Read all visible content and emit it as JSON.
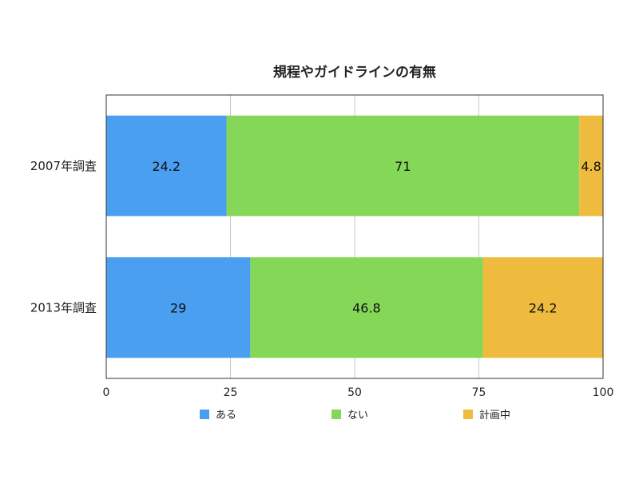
{
  "chart_data": {
    "type": "bar",
    "orientation": "horizontal",
    "stacked": true,
    "title": "規程やガイドラインの有無",
    "categories": [
      "2007年調査",
      "2013年調査"
    ],
    "series": [
      {
        "name": "ある",
        "values": [
          24.2,
          29
        ],
        "color": "#4a9ff0"
      },
      {
        "name": "ない",
        "values": [
          71,
          46.8
        ],
        "color": "#85d857"
      },
      {
        "name": "計画中",
        "values": [
          4.8,
          24.2
        ],
        "color": "#efbb3f"
      }
    ],
    "xlim": [
      0,
      100
    ],
    "x_ticks": [
      0,
      25,
      50,
      75,
      100
    ],
    "xlabel": "",
    "ylabel": "",
    "grid": true,
    "data_labels": true,
    "legend_position": "bottom"
  }
}
